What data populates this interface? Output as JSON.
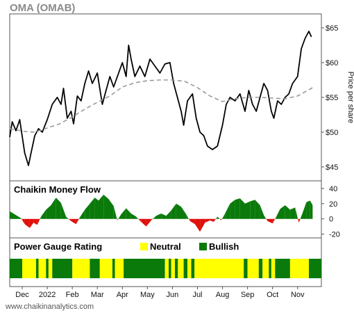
{
  "title": "OMA (OMAB)",
  "footer": "www.chaikinanalytics.com",
  "colors": {
    "price": "#000000",
    "sma": "#9a9a9a",
    "cmf_positive": "#0a7a0a",
    "cmf_negative": "#e0100a",
    "neutral": "#ffff00",
    "bullish": "#0a7a0a"
  },
  "chart_data": [
    {
      "panel": "price",
      "type": "line",
      "ylabel": "Price per share",
      "ylim": [
        43,
        67
      ],
      "y_ticks": [
        45,
        50,
        55,
        60,
        65
      ],
      "y_tick_labels": [
        "$45",
        "$50",
        "$55",
        "$60",
        "$65"
      ],
      "x_range": [
        0,
        12.45
      ],
      "x_ticks": [
        0.5,
        1.5,
        2.5,
        3.5,
        4.5,
        5.5,
        6.5,
        7.5,
        8.5,
        9.5,
        10.5,
        11.5
      ],
      "x_tick_labels": [
        "Dec",
        "2022",
        "Feb",
        "Mar",
        "Apr",
        "May",
        "Jun",
        "Jul",
        "Aug",
        "Sep",
        "Oct",
        "Nov"
      ],
      "series": [
        {
          "style": "solid",
          "points": [
            [
              0,
              49.3
            ],
            [
              0.1,
              51.5
            ],
            [
              0.25,
              50.2
            ],
            [
              0.4,
              51.8
            ],
            [
              0.6,
              47
            ],
            [
              0.75,
              45.2
            ],
            [
              0.85,
              47
            ],
            [
              1.0,
              49.5
            ],
            [
              1.15,
              50.5
            ],
            [
              1.3,
              50
            ],
            [
              1.5,
              51.8
            ],
            [
              1.7,
              54
            ],
            [
              1.9,
              55
            ],
            [
              2.05,
              54
            ],
            [
              2.15,
              56.3
            ],
            [
              2.3,
              52
            ],
            [
              2.45,
              53
            ],
            [
              2.55,
              51.2
            ],
            [
              2.7,
              55.2
            ],
            [
              2.85,
              54.5
            ],
            [
              3.0,
              57
            ],
            [
              3.15,
              58.8
            ],
            [
              3.3,
              57
            ],
            [
              3.5,
              58.5
            ],
            [
              3.7,
              54
            ],
            [
              3.85,
              56
            ],
            [
              4.0,
              58
            ],
            [
              4.15,
              56.5
            ],
            [
              4.3,
              58
            ],
            [
              4.5,
              60
            ],
            [
              4.65,
              58
            ],
            [
              4.75,
              62.5
            ],
            [
              4.85,
              60.5
            ],
            [
              5.0,
              58
            ],
            [
              5.2,
              59.5
            ],
            [
              5.4,
              58
            ],
            [
              5.6,
              60.5
            ],
            [
              5.8,
              59.5
            ],
            [
              6.0,
              58.5
            ],
            [
              6.2,
              59.8
            ],
            [
              6.4,
              60
            ],
            [
              6.55,
              57
            ],
            [
              6.7,
              55
            ],
            [
              6.85,
              53
            ],
            [
              6.95,
              51
            ],
            [
              7.1,
              54.5
            ],
            [
              7.3,
              55.5
            ],
            [
              7.45,
              52
            ],
            [
              7.6,
              50
            ],
            [
              7.75,
              49.5
            ],
            [
              7.9,
              48
            ],
            [
              8.1,
              47.5
            ],
            [
              8.3,
              48
            ],
            [
              8.5,
              51
            ],
            [
              8.65,
              54
            ],
            [
              8.8,
              55
            ],
            [
              9.0,
              54.5
            ],
            [
              9.2,
              55.5
            ],
            [
              9.4,
              53
            ],
            [
              9.55,
              56
            ],
            [
              9.7,
              54
            ],
            [
              9.85,
              53
            ],
            [
              10.0,
              55
            ],
            [
              10.15,
              57
            ],
            [
              10.3,
              56
            ],
            [
              10.45,
              53
            ],
            [
              10.55,
              52
            ],
            [
              10.7,
              54.5
            ],
            [
              10.85,
              54
            ],
            [
              11.0,
              55
            ],
            [
              11.15,
              55.5
            ],
            [
              11.3,
              57
            ],
            [
              11.5,
              58
            ],
            [
              11.65,
              62
            ],
            [
              11.8,
              63.5
            ],
            [
              11.95,
              64.5
            ],
            [
              12.05,
              63.7
            ]
          ]
        },
        {
          "style": "dashed",
          "points": [
            [
              0,
              50.5
            ],
            [
              0.6,
              50.1
            ],
            [
              1.0,
              50.0
            ],
            [
              1.5,
              50.6
            ],
            [
              2.0,
              51.2
            ],
            [
              2.5,
              52.2
            ],
            [
              3.0,
              53.3
            ],
            [
              3.5,
              54.3
            ],
            [
              4.0,
              55.2
            ],
            [
              4.5,
              56.5
            ],
            [
              5.0,
              57.1
            ],
            [
              5.5,
              57.4
            ],
            [
              6.0,
              57.5
            ],
            [
              6.5,
              57.5
            ],
            [
              7.0,
              57.3
            ],
            [
              7.5,
              56.4
            ],
            [
              8.0,
              55.2
            ],
            [
              8.5,
              54.4
            ],
            [
              9.0,
              54.8
            ],
            [
              9.5,
              55.0
            ],
            [
              10.0,
              55.0
            ],
            [
              10.5,
              54.9
            ],
            [
              11.0,
              54.8
            ],
            [
              11.5,
              55.2
            ],
            [
              12.0,
              56.2
            ],
            [
              12.1,
              56.4
            ]
          ]
        }
      ]
    },
    {
      "panel": "cmf",
      "title": "Chaikin Money Flow",
      "type": "area",
      "ylim": [
        -25,
        50
      ],
      "y_ticks": [
        40,
        20,
        0,
        -20
      ],
      "y_tick_labels": [
        "40",
        "20",
        "0",
        "-20"
      ],
      "points": [
        [
          0,
          10
        ],
        [
          0.25,
          5
        ],
        [
          0.45,
          1
        ],
        [
          0.6,
          -7
        ],
        [
          0.8,
          -12
        ],
        [
          0.95,
          -5
        ],
        [
          1.1,
          -8
        ],
        [
          1.25,
          3
        ],
        [
          1.45,
          12
        ],
        [
          1.65,
          18
        ],
        [
          1.85,
          28
        ],
        [
          2.05,
          21
        ],
        [
          2.25,
          3
        ],
        [
          2.45,
          -3
        ],
        [
          2.65,
          -7
        ],
        [
          2.8,
          2
        ],
        [
          3.0,
          12
        ],
        [
          3.2,
          20
        ],
        [
          3.4,
          28
        ],
        [
          3.55,
          24
        ],
        [
          3.75,
          32
        ],
        [
          3.95,
          26
        ],
        [
          4.15,
          17
        ],
        [
          4.3,
          -2
        ],
        [
          4.45,
          6
        ],
        [
          4.65,
          14
        ],
        [
          4.85,
          7
        ],
        [
          5.05,
          3
        ],
        [
          5.25,
          -4
        ],
        [
          5.45,
          -10
        ],
        [
          5.65,
          -2
        ],
        [
          5.85,
          4
        ],
        [
          6.05,
          7
        ],
        [
          6.25,
          4
        ],
        [
          6.45,
          11
        ],
        [
          6.65,
          20
        ],
        [
          6.85,
          16
        ],
        [
          7.05,
          6
        ],
        [
          7.2,
          -3
        ],
        [
          7.4,
          -7
        ],
        [
          7.6,
          -17
        ],
        [
          7.8,
          -5
        ],
        [
          8.0,
          -2
        ],
        [
          8.15,
          -4
        ],
        [
          8.3,
          3
        ],
        [
          8.45,
          -2
        ],
        [
          8.6,
          7
        ],
        [
          8.8,
          20
        ],
        [
          9.0,
          25
        ],
        [
          9.2,
          27
        ],
        [
          9.4,
          20
        ],
        [
          9.6,
          23
        ],
        [
          9.8,
          25
        ],
        [
          10.0,
          18
        ],
        [
          10.15,
          5
        ],
        [
          10.3,
          -3
        ],
        [
          10.5,
          -6
        ],
        [
          10.65,
          3
        ],
        [
          10.8,
          13
        ],
        [
          11.0,
          18
        ],
        [
          11.2,
          12
        ],
        [
          11.4,
          15
        ],
        [
          11.55,
          -5
        ],
        [
          11.7,
          8
        ],
        [
          11.85,
          22
        ],
        [
          12.0,
          24
        ],
        [
          12.1,
          18
        ]
      ]
    },
    {
      "panel": "power_gauge",
      "title": "Power Gauge Rating",
      "type": "heatmap",
      "legend": [
        {
          "label": "Neutral",
          "color_key": "neutral"
        },
        {
          "label": "Bullish",
          "color_key": "bullish"
        }
      ],
      "legend_placement": "top-right",
      "segments": [
        {
          "from": 0,
          "to": 0.5,
          "state": "bullish"
        },
        {
          "from": 0.5,
          "to": 1.05,
          "state": "neutral"
        },
        {
          "from": 1.05,
          "to": 1.15,
          "state": "bullish"
        },
        {
          "from": 1.15,
          "to": 1.45,
          "state": "neutral"
        },
        {
          "from": 1.45,
          "to": 1.55,
          "state": "bullish"
        },
        {
          "from": 1.55,
          "to": 1.7,
          "state": "neutral"
        },
        {
          "from": 1.7,
          "to": 2.5,
          "state": "bullish"
        },
        {
          "from": 2.5,
          "to": 3.2,
          "state": "neutral"
        },
        {
          "from": 3.2,
          "to": 3.6,
          "state": "bullish"
        },
        {
          "from": 3.6,
          "to": 4.1,
          "state": "neutral"
        },
        {
          "from": 4.1,
          "to": 4.2,
          "state": "bullish"
        },
        {
          "from": 4.2,
          "to": 4.55,
          "state": "neutral"
        },
        {
          "from": 4.55,
          "to": 6.2,
          "state": "bullish"
        },
        {
          "from": 6.2,
          "to": 6.35,
          "state": "neutral"
        },
        {
          "from": 6.35,
          "to": 6.45,
          "state": "bullish"
        },
        {
          "from": 6.45,
          "to": 6.6,
          "state": "neutral"
        },
        {
          "from": 6.6,
          "to": 6.72,
          "state": "bullish"
        },
        {
          "from": 6.72,
          "to": 6.95,
          "state": "neutral"
        },
        {
          "from": 6.95,
          "to": 7.1,
          "state": "bullish"
        },
        {
          "from": 7.1,
          "to": 7.25,
          "state": "neutral"
        },
        {
          "from": 7.25,
          "to": 7.38,
          "state": "bullish"
        },
        {
          "from": 7.38,
          "to": 9.35,
          "state": "neutral"
        },
        {
          "from": 9.35,
          "to": 9.5,
          "state": "bullish"
        },
        {
          "from": 9.5,
          "to": 9.95,
          "state": "neutral"
        },
        {
          "from": 9.95,
          "to": 10.1,
          "state": "bullish"
        },
        {
          "from": 10.1,
          "to": 10.35,
          "state": "neutral"
        },
        {
          "from": 10.35,
          "to": 10.45,
          "state": "bullish"
        },
        {
          "from": 10.45,
          "to": 10.6,
          "state": "neutral"
        },
        {
          "from": 10.6,
          "to": 11.2,
          "state": "bullish"
        },
        {
          "from": 11.2,
          "to": 11.95,
          "state": "neutral"
        },
        {
          "from": 11.95,
          "to": 12.45,
          "state": "bullish"
        }
      ]
    }
  ]
}
